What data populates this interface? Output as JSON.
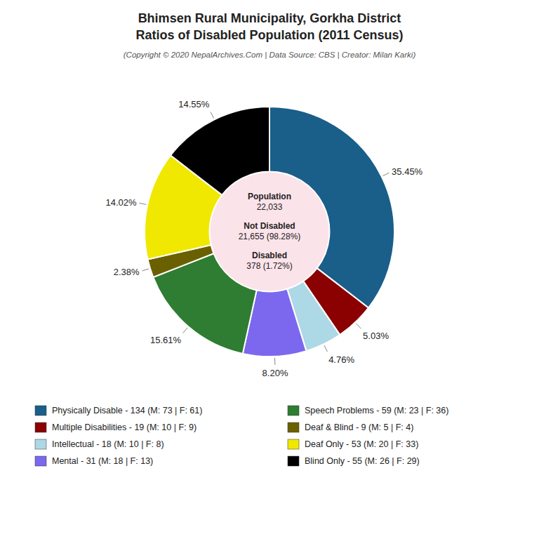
{
  "chart_data": {
    "type": "pie",
    "title": [
      "Bhimsen Rural Municipality, Gorkha District",
      "Ratios of Disabled Population (2011 Census)"
    ],
    "subtitle": "(Copyright © 2020 NepalArchives.Com | Data Source: CBS | Creator: Milan Karki)",
    "categories": [
      "Physically Disable - 134 (M: 73 | F: 61)",
      "Multiple Disabilities - 19 (M: 10 | F: 9)",
      "Intellectual - 18 (M: 10 | F: 8)",
      "Mental - 31 (M: 18 | F: 13)",
      "Speech Problems - 59 (M: 23 | F: 36)",
      "Deaf & Blind - 9 (M: 5 | F: 4)",
      "Deaf Only - 53 (M: 20 | F: 33)",
      "Blind Only - 55 (M: 26 | F: 29)"
    ],
    "values": [
      35.45,
      5.03,
      4.76,
      8.2,
      15.61,
      2.38,
      14.02,
      14.55
    ],
    "value_labels": [
      "35.45%",
      "5.03%",
      "4.76%",
      "8.20%",
      "15.61%",
      "2.38%",
      "14.02%",
      "14.55%"
    ],
    "colors": [
      "#1a5e8a",
      "#8b0000",
      "#add8e6",
      "#7b68ee",
      "#2e7d32",
      "#6b6000",
      "#f0e800",
      "#000000"
    ],
    "data_labels": true,
    "legend": "bottom",
    "annotations": [
      [
        "Population",
        "22,033"
      ],
      [
        "Not Disabled",
        "21,655 (98.28%)"
      ],
      [
        "Disabled",
        "378 (1.72%)"
      ]
    ]
  }
}
